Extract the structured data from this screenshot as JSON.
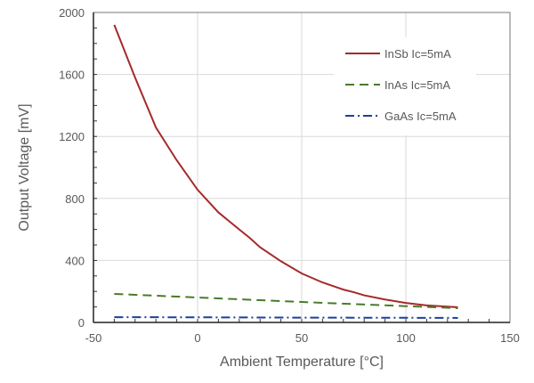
{
  "chart_data": {
    "type": "line",
    "title": "",
    "xlabel": "Ambient Temperature [°C]",
    "ylabel": "Output Voltage [mV]",
    "xlim": [
      -50,
      150
    ],
    "ylim": [
      0,
      2000
    ],
    "xticks": [
      -50,
      0,
      50,
      100,
      150
    ],
    "yticks": [
      0,
      400,
      800,
      1200,
      1600,
      2000
    ],
    "grid": true,
    "legend_position": "top-right",
    "series": [
      {
        "name": "InSb Ic=5mA",
        "color": "#a52a2a",
        "style": "solid",
        "x": [
          -40,
          -30,
          -20,
          -10,
          0,
          10,
          20,
          25,
          30,
          40,
          50,
          60,
          70,
          75,
          80,
          90,
          100,
          110,
          120,
          125
        ],
        "y": [
          1920,
          1580,
          1258,
          1046,
          856,
          710,
          600,
          546,
          485,
          395,
          316,
          258,
          212,
          195,
          175,
          148,
          126,
          110,
          102,
          98
        ]
      },
      {
        "name": "InAs Ic=5mA",
        "color": "#4a7a2a",
        "style": "dashed",
        "x": [
          -40,
          0,
          50,
          100,
          125
        ],
        "y": [
          184,
          161,
          132,
          105,
          92
        ]
      },
      {
        "name": "GaAs Ic=5mA",
        "color": "#1f3f9a",
        "style": "dashdot",
        "x": [
          -40,
          0,
          50,
          100,
          125
        ],
        "y": [
          34,
          33,
          31,
          30,
          29
        ]
      }
    ]
  }
}
